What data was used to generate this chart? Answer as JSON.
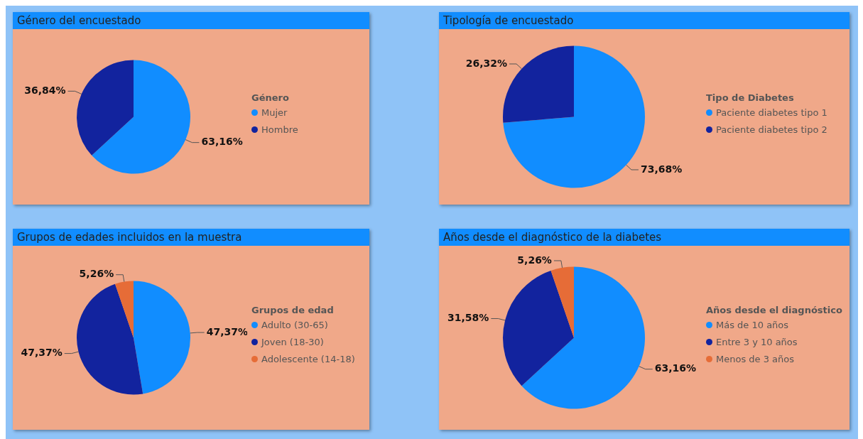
{
  "chart_data": [
    {
      "type": "pie",
      "title": "Género del encuestado",
      "legend_title": "Género",
      "legend": "right",
      "categories": [
        "Mujer",
        "Hombre"
      ],
      "values": [
        63.16,
        36.84
      ],
      "colors": [
        "#118dff",
        "#12239e"
      ],
      "value_labels": [
        "63,16%",
        "36,84%"
      ]
    },
    {
      "type": "pie",
      "title": "Tipología de encuestado",
      "legend_title": "Tipo de Diabetes",
      "legend": "right",
      "categories": [
        "Paciente diabetes tipo 1",
        "Paciente diabetes tipo 2"
      ],
      "values": [
        73.68,
        26.32
      ],
      "colors": [
        "#118dff",
        "#12239e"
      ],
      "value_labels": [
        "73,68%",
        "26,32%"
      ]
    },
    {
      "type": "pie",
      "title": "Grupos de edades incluidos en la muestra",
      "legend_title": "Grupos de edad",
      "legend": "right",
      "categories": [
        "Adulto (30-65)",
        "Joven (18-30)",
        "Adolescente (14-18)"
      ],
      "values": [
        47.37,
        47.37,
        5.26
      ],
      "colors": [
        "#118dff",
        "#12239e",
        "#e66c37"
      ],
      "value_labels": [
        "47,37%",
        "47,37%",
        "5,26%"
      ]
    },
    {
      "type": "pie",
      "title": "Años desde el diagnóstico de la diabetes",
      "legend_title": "Años desde el diagnóstico",
      "legend": "right",
      "categories": [
        "Más de 10 años",
        "Entre 3 y 10 años",
        "Menos de 3 años"
      ],
      "values": [
        63.16,
        31.58,
        5.26
      ],
      "colors": [
        "#118dff",
        "#12239e",
        "#e66c37"
      ],
      "value_labels": [
        "63,16%",
        "31,58%",
        "5,26%"
      ]
    }
  ]
}
